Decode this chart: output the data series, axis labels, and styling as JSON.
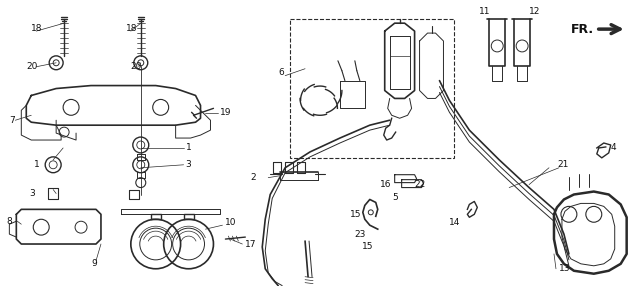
{
  "bg_color": "#ffffff",
  "line_color": "#2a2a2a",
  "text_color": "#111111",
  "fig_width": 6.4,
  "fig_height": 2.87,
  "dpi": 100,
  "border_color": "#cccccc"
}
